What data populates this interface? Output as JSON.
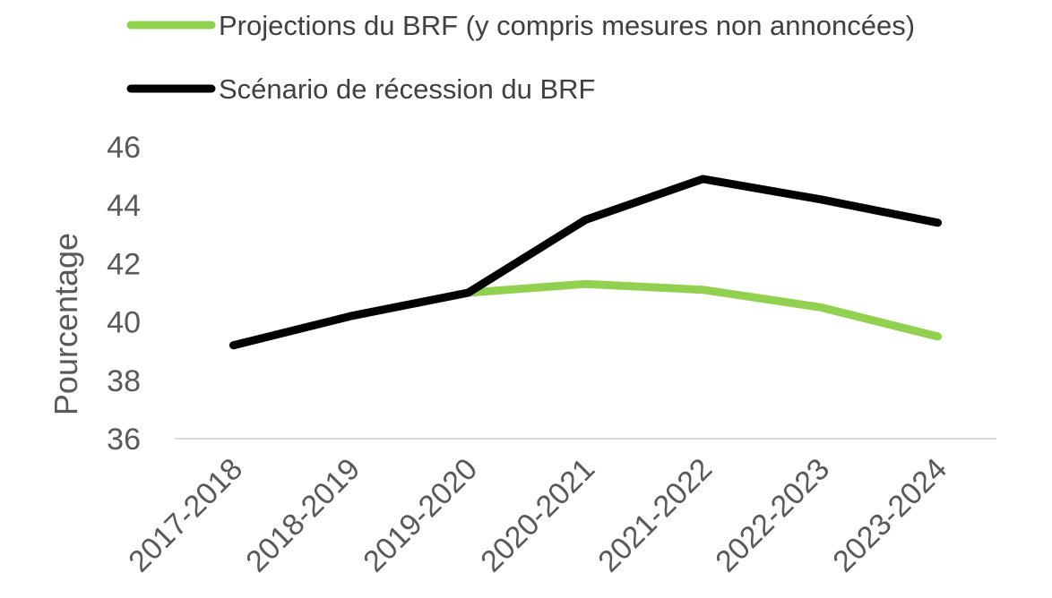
{
  "chart_data": {
    "type": "line",
    "title": "",
    "xlabel": "",
    "ylabel": "Pourcentage",
    "categories": [
      "2017-2018",
      "2018-2019",
      "2019-2020",
      "2020-2021",
      "2021-2022",
      "2022-2023",
      "2023-2024"
    ],
    "ylim": [
      36,
      46
    ],
    "yticks": [
      36,
      38,
      40,
      42,
      44,
      46
    ],
    "grid": false,
    "legend_position": "top-left",
    "series": [
      {
        "name": "Projections du BRF (y compris mesures non annoncées)",
        "color": "#92d050",
        "values": [
          39.2,
          40.2,
          41.0,
          41.3,
          41.1,
          40.5,
          39.5
        ]
      },
      {
        "name": "Scénario de récession du BRF",
        "color": "#000000",
        "values": [
          39.2,
          40.2,
          41.0,
          43.5,
          44.9,
          44.2,
          43.4
        ]
      }
    ]
  }
}
